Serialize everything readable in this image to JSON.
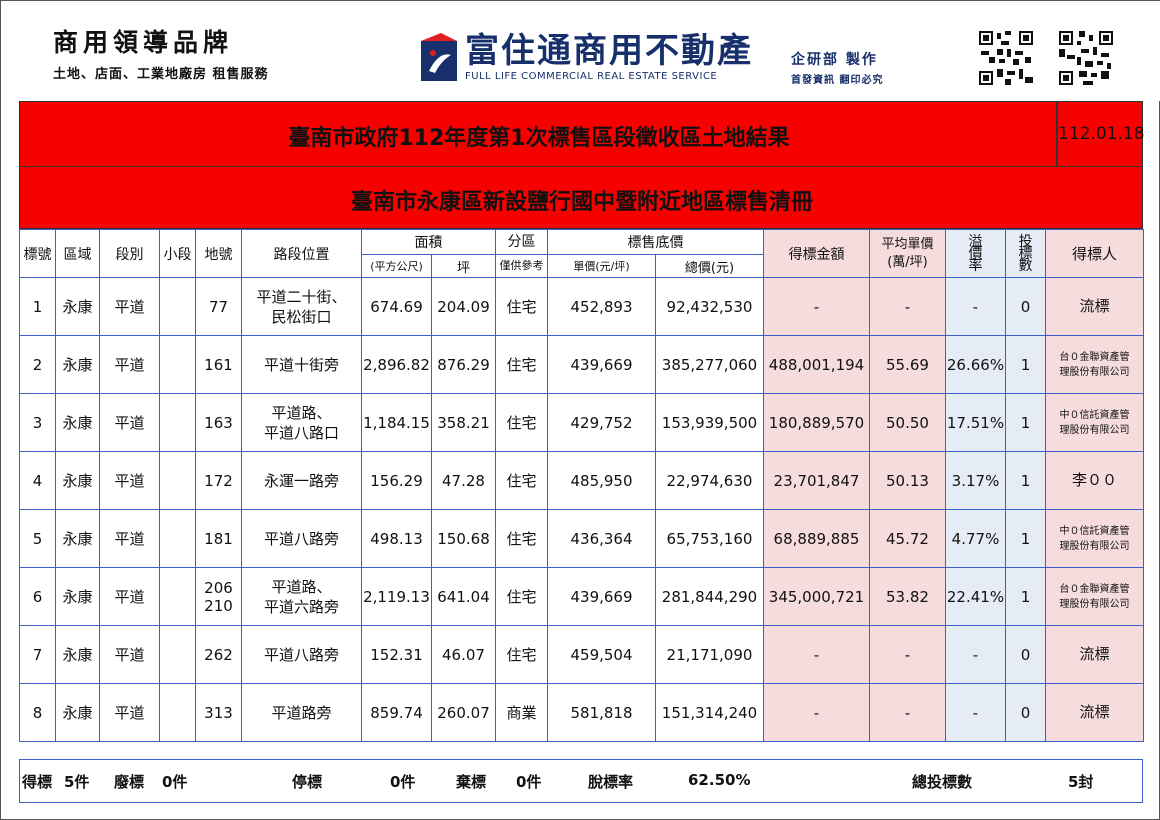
{
  "header": {
    "brand_title": "商用領導品牌",
    "brand_sub": "土地、店面、工業地廠房 租售服務",
    "company_name": "富住通商用不動產",
    "company_en": "FULL LIFE COMMERCIAL REAL ESTATE SERVICE",
    "dept": "企研部 製作",
    "dept_sub": "首發資訊 翻印必究",
    "brand_color": "#17306b"
  },
  "banner": {
    "title": "臺南市政府112年度第1次標售區段徵收區土地結果",
    "date": "112.01.18",
    "subtitle": "臺南市永康區新設鹽行國中暨附近地區標售清冊",
    "color": "#f70000"
  },
  "table": {
    "headers": {
      "no": "標號",
      "area": "區域",
      "section": "段別",
      "subsection": "小段",
      "lot": "地號",
      "road": "路段位置",
      "size": "面積",
      "size_sqm": "(平方公尺)",
      "size_ping": "坪",
      "zone": "分區",
      "zone_note": "僅供參考",
      "base_price": "標售底價",
      "unit_price": "單價(元/坪)",
      "total_price": "總價(元)",
      "winning_amount": "得標金額",
      "avg_unit": "平均單價",
      "avg_unit_unit": "(萬/坪)",
      "premium_a": "溢",
      "premium_b": "價",
      "premium_c": "率",
      "bids_a": "投",
      "bids_b": "標",
      "bids_c": "數",
      "winner": "得標人"
    },
    "rows": [
      {
        "no": "1",
        "area": "永康",
        "section": "平道",
        "sub": "",
        "lot1": "77",
        "lot2": "",
        "road1": "平道二十街、",
        "road2": "民松街口",
        "sqm": "674.69",
        "ping": "204.09",
        "zone": "住宅",
        "unit": "452,893",
        "total": "92,432,530",
        "win": "-",
        "avg": "-",
        "prem": "-",
        "bids": "0",
        "winner1": "流標",
        "winner2": ""
      },
      {
        "no": "2",
        "area": "永康",
        "section": "平道",
        "sub": "",
        "lot1": "161",
        "lot2": "",
        "road1": "平道十街旁",
        "road2": "",
        "sqm": "2,896.82",
        "ping": "876.29",
        "zone": "住宅",
        "unit": "439,669",
        "total": "385,277,060",
        "win": "488,001,194",
        "avg": "55.69",
        "prem": "26.66%",
        "bids": "1",
        "winner1": "台０金聯資產管",
        "winner2": "理股份有限公司"
      },
      {
        "no": "3",
        "area": "永康",
        "section": "平道",
        "sub": "",
        "lot1": "163",
        "lot2": "",
        "road1": "平道路、",
        "road2": "平道八路口",
        "sqm": "1,184.15",
        "ping": "358.21",
        "zone": "住宅",
        "unit": "429,752",
        "total": "153,939,500",
        "win": "180,889,570",
        "avg": "50.50",
        "prem": "17.51%",
        "bids": "1",
        "winner1": "中０信託資產管",
        "winner2": "理股份有限公司"
      },
      {
        "no": "4",
        "area": "永康",
        "section": "平道",
        "sub": "",
        "lot1": "172",
        "lot2": "",
        "road1": "永運一路旁",
        "road2": "",
        "sqm": "156.29",
        "ping": "47.28",
        "zone": "住宅",
        "unit": "485,950",
        "total": "22,974,630",
        "win": "23,701,847",
        "avg": "50.13",
        "prem": "3.17%",
        "bids": "1",
        "winner1": "李００",
        "winner2": ""
      },
      {
        "no": "5",
        "area": "永康",
        "section": "平道",
        "sub": "",
        "lot1": "181",
        "lot2": "",
        "road1": "平道八路旁",
        "road2": "",
        "sqm": "498.13",
        "ping": "150.68",
        "zone": "住宅",
        "unit": "436,364",
        "total": "65,753,160",
        "win": "68,889,885",
        "avg": "45.72",
        "prem": "4.77%",
        "bids": "1",
        "winner1": "中０信託資產管",
        "winner2": "理股份有限公司"
      },
      {
        "no": "6",
        "area": "永康",
        "section": "平道",
        "sub": "",
        "lot1": "206",
        "lot2": "210",
        "road1": "平道路、",
        "road2": "平道六路旁",
        "sqm": "2,119.13",
        "ping": "641.04",
        "zone": "住宅",
        "unit": "439,669",
        "total": "281,844,290",
        "win": "345,000,721",
        "avg": "53.82",
        "prem": "22.41%",
        "bids": "1",
        "winner1": "台０金聯資產管",
        "winner2": "理股份有限公司"
      },
      {
        "no": "7",
        "area": "永康",
        "section": "平道",
        "sub": "",
        "lot1": "262",
        "lot2": "",
        "road1": "平道八路旁",
        "road2": "",
        "sqm": "152.31",
        "ping": "46.07",
        "zone": "住宅",
        "unit": "459,504",
        "total": "21,171,090",
        "win": "-",
        "avg": "-",
        "prem": "-",
        "bids": "0",
        "winner1": "流標",
        "winner2": ""
      },
      {
        "no": "8",
        "area": "永康",
        "section": "平道",
        "sub": "",
        "lot1": "313",
        "lot2": "",
        "road1": "平道路旁",
        "road2": "",
        "sqm": "859.74",
        "ping": "260.07",
        "zone": "商業",
        "unit": "581,818",
        "total": "151,314,240",
        "win": "-",
        "avg": "-",
        "prem": "-",
        "bids": "0",
        "winner1": "流標",
        "winner2": ""
      }
    ]
  },
  "footer": {
    "won_label": "得標",
    "won_value": "5件",
    "void_label": "廢標",
    "void_value": "0件",
    "stopped_label": "停標",
    "stopped_value": "0件",
    "abandoned_label": "棄標",
    "abandoned_value": "0件",
    "rate_label": "脫標率",
    "rate_value": "62.50%",
    "total_bids_label": "總投標數",
    "total_bids_value": "5封"
  }
}
